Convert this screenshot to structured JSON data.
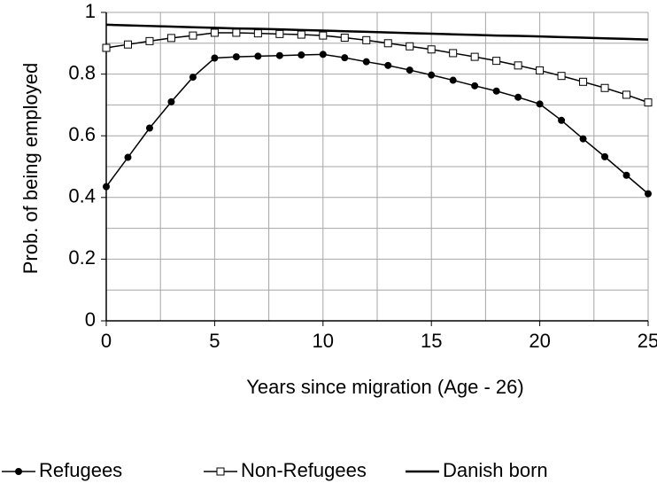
{
  "chart_data": {
    "type": "line",
    "x_label": "Years since migration (Age - 26)",
    "y_label": "Prob. of being employed",
    "x": [
      0,
      1,
      2,
      3,
      4,
      5,
      6,
      7,
      8,
      9,
      10,
      11,
      12,
      13,
      14,
      15,
      16,
      17,
      18,
      19,
      20,
      21,
      22,
      23,
      24,
      25
    ],
    "series": [
      {
        "name": "Refugees",
        "color": "#000000",
        "marker": "circle",
        "values": [
          0.435,
          0.53,
          0.625,
          0.71,
          0.79,
          0.852,
          0.856,
          0.858,
          0.86,
          0.862,
          0.864,
          0.853,
          0.84,
          0.828,
          0.813,
          0.797,
          0.78,
          0.762,
          0.745,
          0.725,
          0.703,
          0.65,
          0.59,
          0.532,
          0.472,
          0.412
        ]
      },
      {
        "name": "Non-Refugees",
        "color": "#000000",
        "marker": "square",
        "values": [
          0.885,
          0.896,
          0.907,
          0.917,
          0.925,
          0.934,
          0.934,
          0.932,
          0.93,
          0.928,
          0.925,
          0.918,
          0.91,
          0.9,
          0.89,
          0.88,
          0.868,
          0.856,
          0.843,
          0.828,
          0.812,
          0.794,
          0.775,
          0.755,
          0.733,
          0.708
        ]
      },
      {
        "name": "Danish born",
        "color": "#000000",
        "marker": "none",
        "values": [
          0.96,
          0.958,
          0.956,
          0.954,
          0.952,
          0.95,
          0.948,
          0.947,
          0.945,
          0.943,
          0.941,
          0.939,
          0.937,
          0.935,
          0.933,
          0.931,
          0.929,
          0.927,
          0.925,
          0.924,
          0.922,
          0.92,
          0.918,
          0.916,
          0.914,
          0.912
        ]
      }
    ],
    "xlim": [
      0,
      25
    ],
    "xticks": [
      0,
      5,
      10,
      15,
      20,
      25
    ],
    "x_minor_ticks": [
      2.5,
      7.5,
      12.5,
      17.5,
      22.5
    ],
    "ylim": [
      0,
      1
    ],
    "yticks": [
      0,
      0.2,
      0.4,
      0.6,
      0.8,
      1
    ],
    "y_minor_ticks": [
      0.1,
      0.3,
      0.5,
      0.7,
      0.9
    ],
    "grid": true,
    "legend": "bottom"
  }
}
